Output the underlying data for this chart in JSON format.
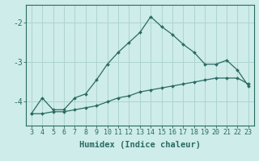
{
  "xlabel": "Humidex (Indice chaleur)",
  "ylabel": "",
  "background_color": "#ceecea",
  "grid_color": "#aed4d0",
  "line_color": "#2a6b62",
  "x_values": [
    3,
    4,
    5,
    6,
    7,
    8,
    9,
    10,
    11,
    12,
    13,
    14,
    15,
    16,
    17,
    18,
    19,
    20,
    21,
    22,
    23
  ],
  "y_values_upper": [
    -4.3,
    -3.9,
    -4.2,
    -4.2,
    -3.9,
    -3.8,
    -3.45,
    -3.05,
    -2.75,
    -2.5,
    -2.25,
    -1.85,
    -2.1,
    -2.3,
    -2.55,
    -2.75,
    -3.05,
    -3.05,
    -2.95,
    -3.2,
    -3.6
  ],
  "y_values_lower": [
    -4.3,
    -4.3,
    -4.25,
    -4.25,
    -4.2,
    -4.15,
    -4.1,
    -4.0,
    -3.9,
    -3.85,
    -3.75,
    -3.7,
    -3.65,
    -3.6,
    -3.55,
    -3.5,
    -3.45,
    -3.4,
    -3.4,
    -3.4,
    -3.55
  ],
  "ylim": [
    -4.6,
    -1.55
  ],
  "xlim": [
    2.5,
    23.5
  ],
  "yticks": [
    -4,
    -3,
    -2
  ],
  "ytick_labels": [
    "-4",
    "-3",
    "-2"
  ],
  "xticks": [
    3,
    4,
    5,
    6,
    7,
    8,
    9,
    10,
    11,
    12,
    13,
    14,
    15,
    16,
    17,
    18,
    19,
    20,
    21,
    22,
    23
  ],
  "tick_fontsize": 6,
  "label_fontsize": 7.5,
  "marker_size": 2.0,
  "line_width": 0.9
}
